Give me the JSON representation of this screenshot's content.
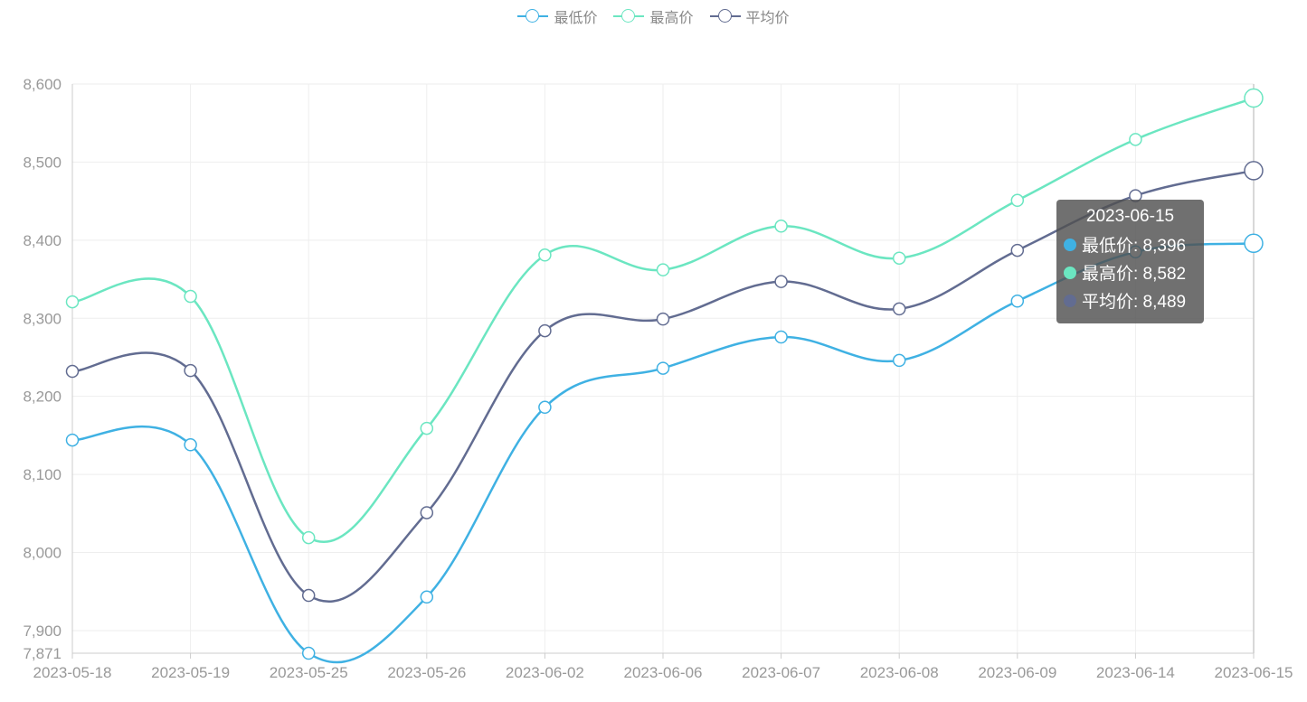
{
  "chart_data": {
    "type": "line",
    "smooth": true,
    "categories": [
      "2023-05-18",
      "2023-05-19",
      "2023-05-25",
      "2023-05-26",
      "2023-06-02",
      "2023-06-06",
      "2023-06-07",
      "2023-06-08",
      "2023-06-09",
      "2023-06-14",
      "2023-06-15"
    ],
    "series": [
      {
        "name": "最低价",
        "color": "#3fb1e3",
        "values": [
          8144,
          8138,
          7871,
          7943,
          8186,
          8236,
          8276,
          8246,
          8322,
          8385,
          8396
        ]
      },
      {
        "name": "最高价",
        "color": "#6be6c1",
        "values": [
          8321,
          8328,
          8019,
          8159,
          8381,
          8362,
          8418,
          8377,
          8451,
          8529,
          8582
        ]
      },
      {
        "name": "平均价",
        "color": "#626c91",
        "values": [
          8232,
          8233,
          7945,
          8051,
          8284,
          8299,
          8347,
          8312,
          8387,
          8457,
          8489
        ]
      }
    ],
    "yticks": [
      "8,600",
      "8,500",
      "8,400",
      "8,300",
      "8,200",
      "8,100",
      "8,000",
      "7,900",
      "7,871"
    ],
    "ytick_values": [
      8600,
      8500,
      8400,
      8300,
      8200,
      8100,
      8000,
      7900,
      7871
    ],
    "ylim": [
      7871,
      8600
    ],
    "grid": true,
    "legend_position": "top-center",
    "tooltip": {
      "title": "2023-06-15",
      "rows": [
        {
          "label": "最低价: 8,396",
          "color": "#3fb1e3"
        },
        {
          "label": "最高价: 8,582",
          "color": "#6be6c1"
        },
        {
          "label": "平均价: 8,489",
          "color": "#626c91"
        }
      ]
    }
  }
}
